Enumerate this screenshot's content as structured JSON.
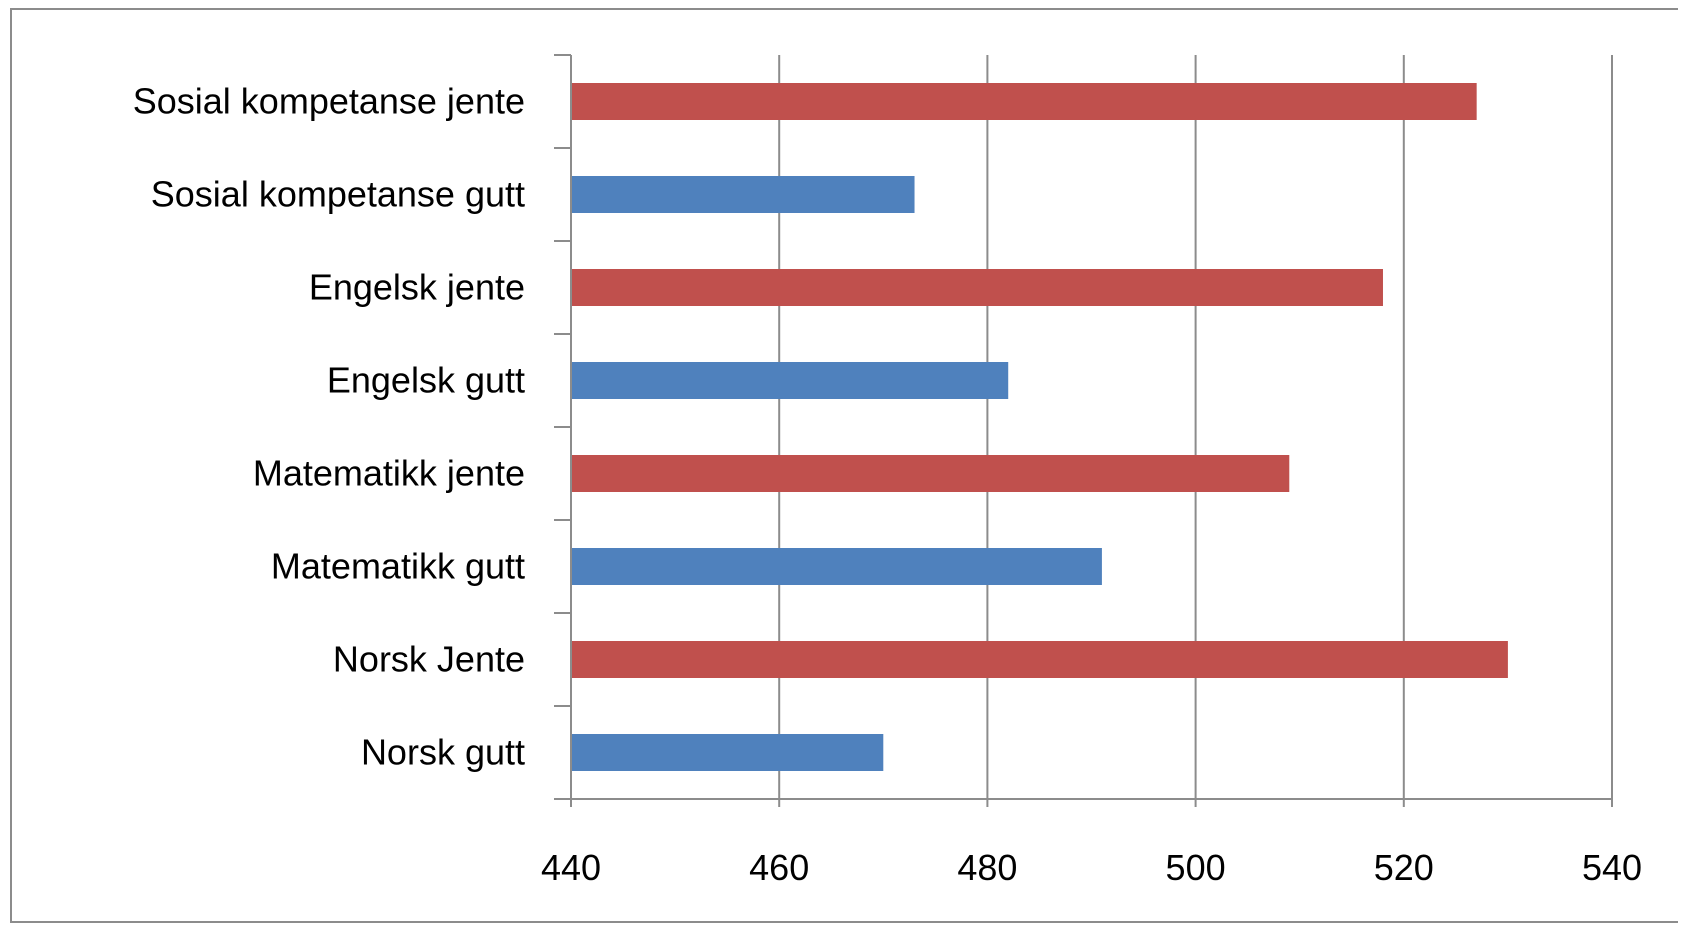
{
  "chart_data": {
    "type": "bar",
    "orientation": "horizontal",
    "categories": [
      "Sosial kompetanse jente",
      "Sosial kompetanse gutt",
      "Engelsk jente",
      "Engelsk gutt",
      "Matematikk jente",
      "Matematikk gutt",
      "Norsk Jente",
      "Norsk gutt"
    ],
    "values": [
      527,
      473,
      518,
      482,
      509,
      491,
      530,
      470
    ],
    "bar_colors": [
      "#c0504d",
      "#4f81bd",
      "#c0504d",
      "#4f81bd",
      "#c0504d",
      "#4f81bd",
      "#c0504d",
      "#4f81bd"
    ],
    "xlim": [
      440,
      540
    ],
    "xticks": [
      440,
      460,
      480,
      500,
      520,
      540
    ],
    "grid": "vertical",
    "title": "",
    "xlabel": "",
    "ylabel": ""
  },
  "colors": {
    "jente": "#c0504d",
    "gutt": "#4f81bd",
    "grid": "#8c8c8c",
    "frame": "#8c8c8c"
  }
}
